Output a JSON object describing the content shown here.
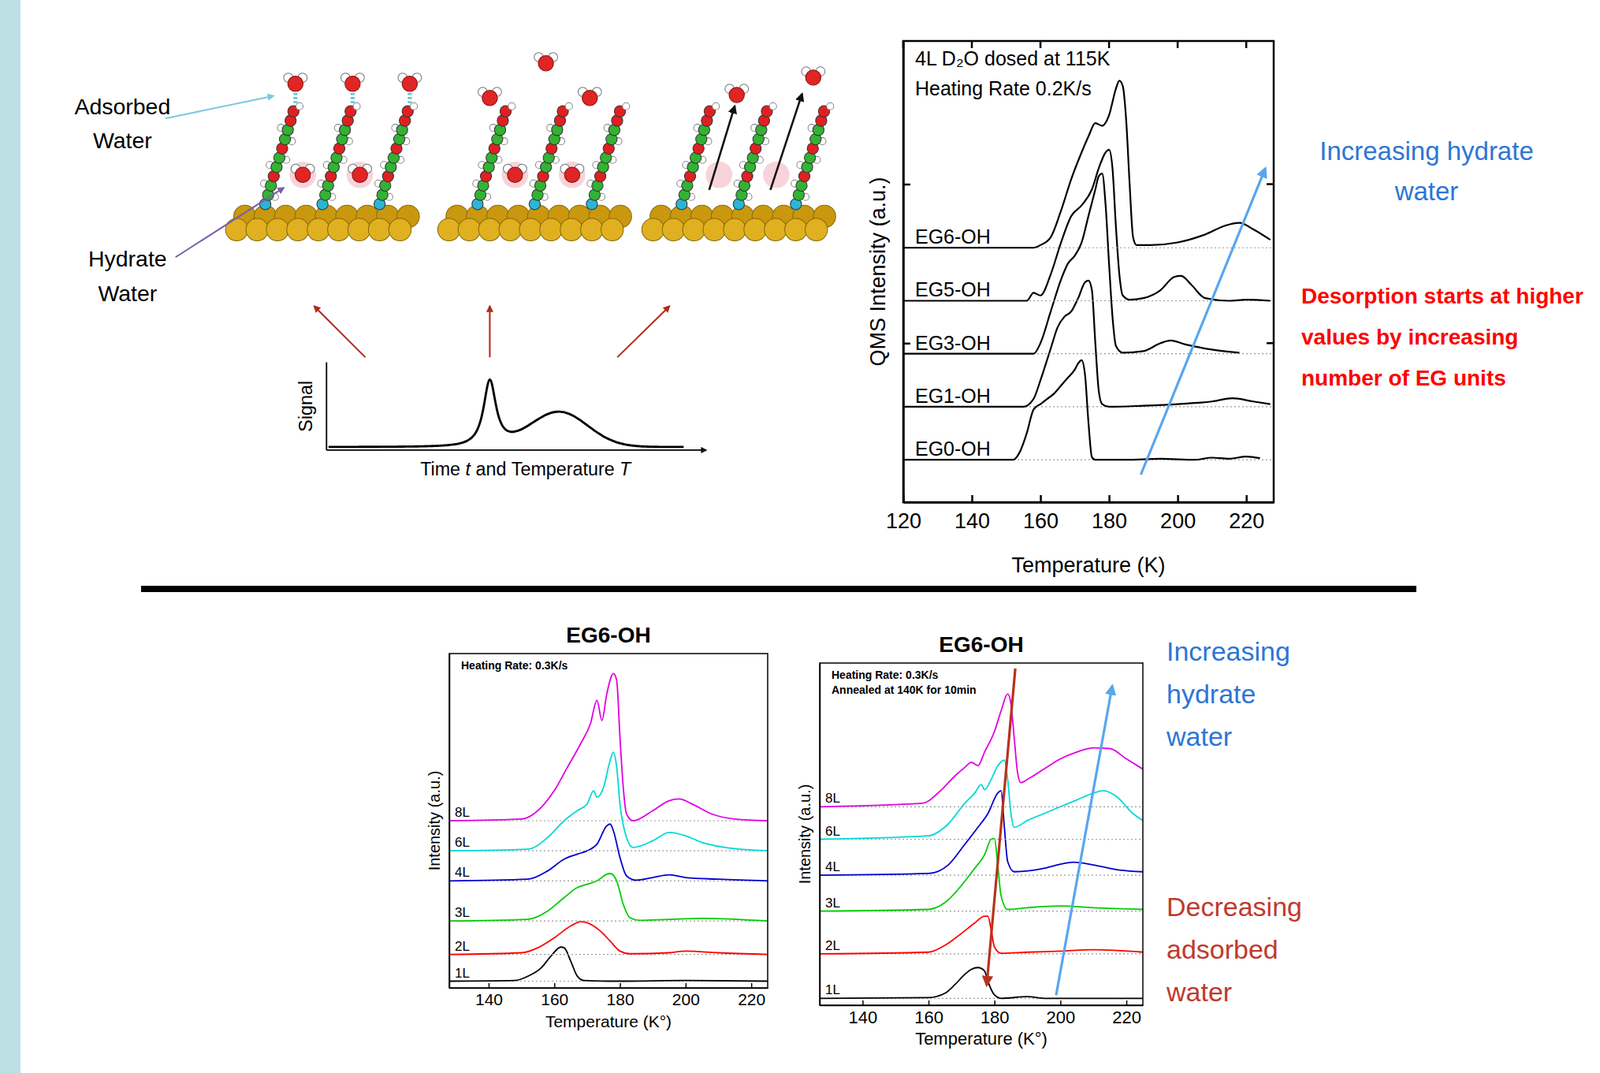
{
  "schematic": {
    "labels": [
      "Adsorbed Water",
      "Hydrate Water"
    ],
    "signal_plot": {
      "ylabel": "Signal",
      "xlabel": "Time t and Temperature T"
    }
  },
  "chart_data": [
    {
      "type": "line",
      "notes": [
        "4L D₂O dosed at 115K",
        "Heating Rate 0.2K/s"
      ],
      "xlabel": "Temperature (K)",
      "ylabel": "QMS Intensity (a.u.)",
      "xlim": [
        120,
        228
      ],
      "xticks": [
        120,
        140,
        160,
        180,
        200,
        220
      ],
      "ylim": [
        0,
        8.7
      ],
      "yticks": [
        3,
        6
      ],
      "tick_labels": "x",
      "series": [
        {
          "name": "EG0-OH",
          "color": "#000000",
          "baseline": 0.8,
          "x": [
            120,
            140,
            152,
            154,
            156,
            158,
            160,
            162,
            164,
            166,
            168,
            170,
            171,
            172,
            173,
            174,
            175,
            176,
            185,
            195,
            205,
            210,
            215,
            220,
            224
          ],
          "values": [
            0.8,
            0.8,
            0.8,
            0.95,
            1.3,
            1.75,
            1.85,
            1.95,
            2.05,
            2.2,
            2.35,
            2.5,
            2.62,
            2.68,
            2.4,
            1.5,
            0.85,
            0.8,
            0.8,
            0.82,
            0.8,
            0.84,
            0.82,
            0.86,
            0.83
          ]
        },
        {
          "name": "EG1-OH",
          "color": "#000000",
          "baseline": 1.8,
          "x": [
            120,
            155,
            158,
            160,
            163,
            165,
            167,
            169,
            171,
            173,
            174,
            175,
            176,
            177,
            178,
            180,
            190,
            200,
            210,
            216,
            222,
            227
          ],
          "values": [
            1.8,
            1.8,
            1.95,
            2.3,
            2.9,
            3.3,
            3.5,
            3.6,
            3.85,
            4.15,
            4.18,
            4.0,
            3.0,
            2.1,
            1.85,
            1.8,
            1.82,
            1.85,
            1.9,
            1.96,
            1.9,
            1.85
          ]
        },
        {
          "name": "EG3-OH",
          "color": "#000000",
          "baseline": 2.8,
          "x": [
            120,
            158,
            160,
            163,
            166,
            168,
            170,
            172,
            174,
            176,
            177,
            178,
            179,
            180,
            181,
            182,
            184,
            190,
            195,
            198,
            202,
            210,
            218
          ],
          "values": [
            2.8,
            2.8,
            3.0,
            3.6,
            4.2,
            4.5,
            4.65,
            4.9,
            5.4,
            5.9,
            6.15,
            6.2,
            5.6,
            4.5,
            3.5,
            2.95,
            2.82,
            2.85,
            3.0,
            3.05,
            2.98,
            2.88,
            2.82
          ]
        },
        {
          "name": "EG5-OH",
          "color": "#000000",
          "baseline": 3.8,
          "x": [
            120,
            156,
            158,
            160,
            163,
            166,
            169,
            172,
            175,
            177,
            179,
            180,
            181,
            182,
            183,
            184,
            186,
            190,
            195,
            199,
            201,
            204,
            208,
            215,
            220,
            227
          ],
          "values": [
            3.8,
            3.8,
            3.95,
            3.9,
            4.3,
            4.9,
            5.4,
            5.6,
            5.9,
            6.3,
            6.6,
            6.65,
            6.3,
            5.2,
            4.3,
            3.9,
            3.82,
            3.85,
            4.0,
            4.25,
            4.27,
            4.1,
            3.85,
            3.8,
            3.82,
            3.8
          ]
        },
        {
          "name": "EG6-OH",
          "color": "#000000",
          "baseline": 4.8,
          "x": [
            120,
            158,
            160,
            163,
            166,
            169,
            172,
            174,
            176,
            178,
            180,
            182,
            183,
            184,
            185,
            186,
            187,
            188,
            192,
            200,
            208,
            214,
            218,
            222,
            227
          ],
          "values": [
            4.8,
            4.8,
            4.85,
            5.0,
            5.5,
            6.1,
            6.6,
            6.9,
            7.15,
            7.1,
            7.3,
            7.8,
            7.95,
            7.85,
            7.2,
            6.0,
            5.0,
            4.85,
            4.85,
            4.9,
            5.05,
            5.22,
            5.27,
            5.15,
            4.95
          ]
        }
      ],
      "annotations": [
        {
          "text": "Increasing hydrate water",
          "color": "#2e75d6"
        },
        {
          "text": "Desorption starts at higher values by increasing number of EG units",
          "color": "#ff0000"
        }
      ]
    },
    {
      "type": "line",
      "title": "EG6-OH",
      "notes": [
        "Heating Rate: 0.3K/s"
      ],
      "xlabel": "Temperature (K°)",
      "ylabel": "Intensity (a.u.)",
      "xlim": [
        128,
        225
      ],
      "xticks": [
        140,
        160,
        180,
        200,
        220
      ],
      "ylim": [
        0,
        10
      ],
      "yticks": [],
      "tick_labels": "x",
      "series": [
        {
          "name": "1L",
          "color": "#000000",
          "baseline": 0.2,
          "x": [
            128,
            148,
            152,
            156,
            159,
            162,
            163,
            165,
            167,
            169,
            180,
            200,
            225
          ],
          "values": [
            0.2,
            0.22,
            0.35,
            0.6,
            0.95,
            1.22,
            1.2,
            0.8,
            0.35,
            0.22,
            0.2,
            0.22,
            0.2
          ]
        },
        {
          "name": "2L",
          "color": "#ff0000",
          "baseline": 1.0,
          "x": [
            128,
            150,
            155,
            160,
            165,
            168,
            170,
            174,
            177,
            180,
            183,
            195,
            200,
            210,
            225
          ],
          "values": [
            1.0,
            1.05,
            1.2,
            1.5,
            1.85,
            1.98,
            1.95,
            1.7,
            1.4,
            1.1,
            1.02,
            1.05,
            1.1,
            1.05,
            1.0
          ]
        },
        {
          "name": "3L",
          "color": "#00cc00",
          "baseline": 2.0,
          "x": [
            128,
            152,
            158,
            163,
            167,
            170,
            173,
            176,
            177,
            179,
            181,
            183,
            186,
            195,
            205,
            225
          ],
          "values": [
            2.0,
            2.05,
            2.3,
            2.7,
            3.0,
            3.1,
            3.2,
            3.4,
            3.42,
            3.2,
            2.5,
            2.1,
            2.02,
            2.05,
            2.08,
            2.0
          ]
        },
        {
          "name": "4L",
          "color": "#0000cc",
          "baseline": 3.2,
          "x": [
            128,
            152,
            158,
            163,
            167,
            170,
            173,
            176,
            177,
            178,
            180,
            182,
            185,
            190,
            195,
            200,
            210,
            225
          ],
          "values": [
            3.2,
            3.25,
            3.5,
            3.85,
            4.0,
            4.1,
            4.3,
            4.85,
            4.9,
            4.7,
            3.9,
            3.35,
            3.22,
            3.3,
            3.38,
            3.3,
            3.25,
            3.2
          ]
        },
        {
          "name": "6L",
          "color": "#00d8d8",
          "baseline": 4.1,
          "x": [
            128,
            152,
            158,
            163,
            167,
            170,
            172,
            173,
            175,
            177,
            178,
            179,
            180,
            182,
            184,
            190,
            195,
            200,
            205,
            212,
            225
          ],
          "values": [
            4.1,
            4.15,
            4.5,
            5.0,
            5.3,
            5.5,
            5.9,
            5.7,
            6.0,
            6.8,
            7.05,
            6.6,
            5.5,
            4.5,
            4.2,
            4.4,
            4.65,
            4.55,
            4.35,
            4.2,
            4.1
          ]
        },
        {
          "name": "8L",
          "color": "#e000e0",
          "baseline": 5.0,
          "x": [
            128,
            150,
            156,
            160,
            164,
            168,
            171,
            173,
            174.5,
            176,
            178,
            179,
            180,
            181,
            182,
            184,
            190,
            195,
            198,
            202,
            208,
            215,
            225
          ],
          "values": [
            5.0,
            5.05,
            5.4,
            5.9,
            6.6,
            7.3,
            7.9,
            8.6,
            8.0,
            8.8,
            9.4,
            9.2,
            7.5,
            6.0,
            5.2,
            5.0,
            5.3,
            5.6,
            5.65,
            5.5,
            5.2,
            5.05,
            5.0
          ]
        }
      ]
    },
    {
      "type": "line",
      "title": "EG6-OH",
      "notes": [
        "Heating Rate: 0.3K/s",
        "Annealed at 140K for 10min"
      ],
      "xlabel": "Temperature (K°)",
      "ylabel": "Intensity (a.u.)",
      "xlim": [
        127,
        225
      ],
      "xticks": [
        140,
        160,
        180,
        200,
        220
      ],
      "ylim": [
        0,
        10
      ],
      "yticks": [],
      "tick_labels": "x",
      "series": [
        {
          "name": "1L",
          "color": "#000000",
          "baseline": 0.2,
          "x": [
            127,
            160,
            165,
            168,
            171,
            173,
            175,
            177,
            178,
            180,
            182,
            190,
            195,
            225
          ],
          "values": [
            0.2,
            0.22,
            0.35,
            0.6,
            0.9,
            1.05,
            1.1,
            1.0,
            0.7,
            0.3,
            0.2,
            0.25,
            0.2,
            0.2
          ]
        },
        {
          "name": "2L",
          "color": "#ff0000",
          "baseline": 1.5,
          "x": [
            127,
            160,
            165,
            170,
            174,
            177,
            178,
            179,
            180,
            182,
            190,
            200,
            210,
            225
          ],
          "values": [
            1.5,
            1.55,
            1.75,
            2.1,
            2.4,
            2.6,
            2.6,
            2.2,
            1.7,
            1.52,
            1.55,
            1.58,
            1.62,
            1.55
          ]
        },
        {
          "name": "3L",
          "color": "#00cc00",
          "baseline": 2.75,
          "x": [
            127,
            160,
            165,
            170,
            174,
            177,
            179,
            180,
            181,
            182,
            184,
            190,
            200,
            210,
            225
          ],
          "values": [
            2.75,
            2.8,
            3.0,
            3.5,
            4.0,
            4.4,
            4.85,
            4.87,
            4.1,
            3.2,
            2.8,
            2.85,
            2.9,
            2.85,
            2.8
          ]
        },
        {
          "name": "4L",
          "color": "#0000cc",
          "baseline": 3.8,
          "x": [
            127,
            160,
            166,
            171,
            175,
            178,
            181,
            182,
            183,
            184,
            186,
            195,
            200,
            204,
            210,
            218,
            225
          ],
          "values": [
            3.8,
            3.85,
            4.1,
            4.7,
            5.2,
            5.6,
            6.2,
            6.27,
            5.2,
            4.2,
            3.9,
            4.0,
            4.12,
            4.18,
            4.1,
            3.95,
            3.9
          ]
        },
        {
          "name": "6L",
          "color": "#00d8d8",
          "baseline": 4.85,
          "x": [
            127,
            160,
            166,
            171,
            174,
            176,
            177,
            179,
            181,
            183,
            184,
            185,
            186,
            190,
            195,
            200,
            205,
            210,
            213,
            217,
            222,
            225
          ],
          "values": [
            4.85,
            4.95,
            5.3,
            5.9,
            6.2,
            6.45,
            6.3,
            6.6,
            7.0,
            7.16,
            6.6,
            5.6,
            5.2,
            5.4,
            5.6,
            5.8,
            6.0,
            6.2,
            6.27,
            6.1,
            5.6,
            5.4
          ]
        },
        {
          "name": "8L",
          "color": "#e000e0",
          "baseline": 5.8,
          "x": [
            127,
            158,
            164,
            168,
            171,
            173,
            175,
            177,
            180,
            182,
            184,
            185,
            186,
            187,
            188,
            190,
            195,
            200,
            205,
            210,
            215,
            220,
            225
          ],
          "values": [
            5.8,
            5.9,
            6.3,
            6.7,
            6.95,
            7.1,
            7.0,
            7.4,
            8.0,
            8.6,
            9.1,
            8.8,
            7.8,
            6.8,
            6.5,
            6.6,
            6.9,
            7.2,
            7.4,
            7.52,
            7.5,
            7.2,
            6.9
          ]
        }
      ],
      "annotations": [
        {
          "text": "Increasing hydrate water",
          "color": "#2e75d6"
        },
        {
          "text": "Decreasing adsorbed water",
          "color": "#c0392b"
        }
      ]
    }
  ]
}
